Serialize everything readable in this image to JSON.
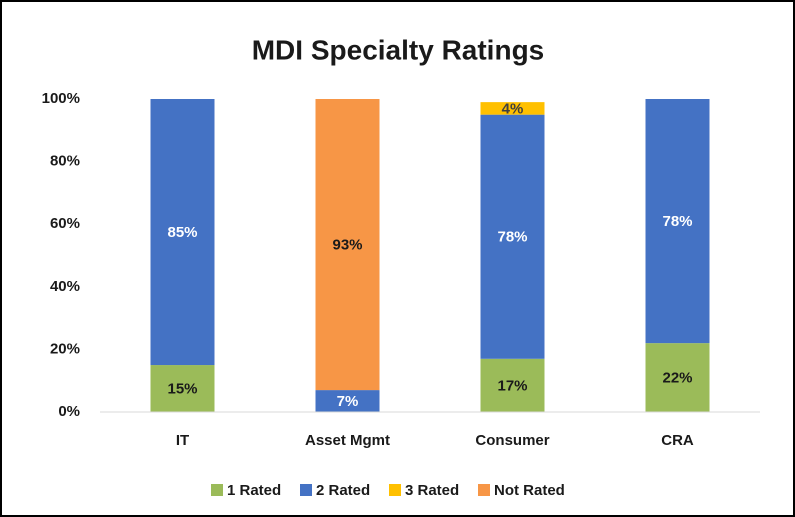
{
  "chart_data": {
    "type": "stacked_bar",
    "title": "MDI Specialty Ratings",
    "categories": [
      "IT",
      "Asset Mgmt",
      "Consumer",
      "CRA"
    ],
    "series": [
      {
        "name": "1 Rated",
        "color": "#9bbb59",
        "label_color": "#1a1a1a",
        "values": [
          15,
          null,
          17,
          22
        ],
        "value_labels": [
          "15%",
          null,
          "17%",
          "22%"
        ]
      },
      {
        "name": "2 Rated",
        "color": "#4472c4",
        "label_color": "#ffffff",
        "values": [
          85,
          7,
          78,
          78
        ],
        "value_labels": [
          "85%",
          "7%",
          "78%",
          "78%"
        ]
      },
      {
        "name": "3 Rated",
        "color": "#ffc000",
        "label_color": "#404040",
        "values": [
          null,
          null,
          4,
          null
        ],
        "value_labels": [
          null,
          null,
          "4%",
          null
        ]
      },
      {
        "name": "Not Rated",
        "color": "#f79646",
        "label_color": "#1a1a1a",
        "values": [
          null,
          93,
          null,
          null
        ],
        "value_labels": [
          null,
          "93%",
          null,
          null
        ]
      }
    ],
    "ylim": [
      0,
      100
    ],
    "yticks": [
      {
        "value": 0,
        "label": "0%"
      },
      {
        "value": 20,
        "label": "20%"
      },
      {
        "value": 40,
        "label": "40%"
      },
      {
        "value": 60,
        "label": "60%"
      },
      {
        "value": 80,
        "label": "80%"
      },
      {
        "value": 100,
        "label": "100%"
      }
    ],
    "grid": false,
    "legend": "bottom"
  }
}
